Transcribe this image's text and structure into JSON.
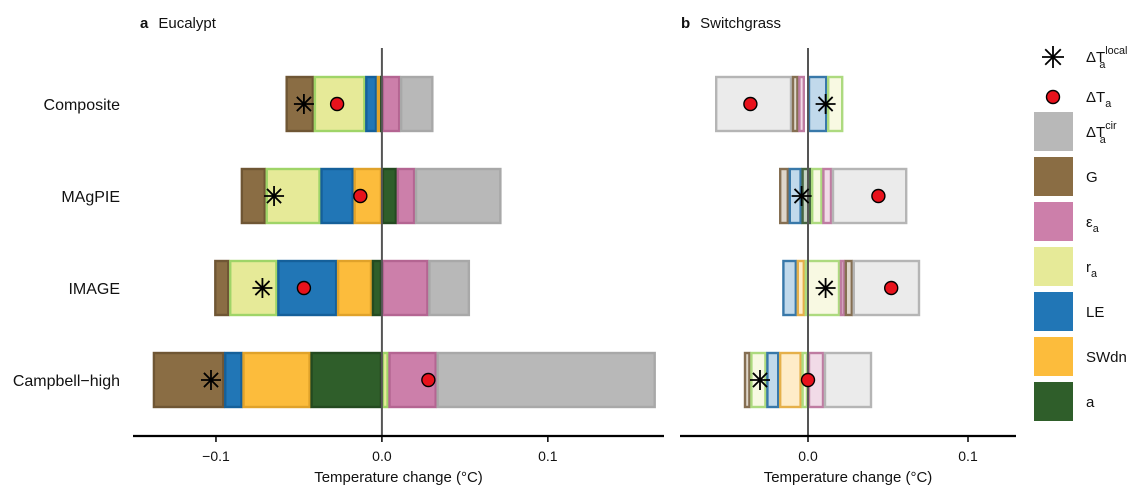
{
  "colors": {
    "G": "#8a6d44",
    "epsilon_a": "#cc7faa",
    "r_a": "#e6ea98",
    "LE": "#2176b6",
    "SWdn": "#fcbc3c",
    "a": "#2f5e2a",
    "circ": "#b8b8b8",
    "outline_r_a": "#9fd468",
    "outline_circ": "#a8a8a8",
    "local_marker": "#000000",
    "total_marker": "#e8121c"
  },
  "chart_data": [
    {
      "panel_letter": "a",
      "title": "Eucalypt",
      "type": "bar",
      "orientation": "horizontal-stacked",
      "xlabel": "Temperature change (°C)",
      "xlim": [
        -0.15,
        0.17
      ],
      "xticks": [
        -0.1,
        0.0,
        0.1
      ],
      "xtick_labels": [
        "−0.1",
        "0.0",
        "0.1"
      ],
      "faded": false,
      "categories": [
        "Composite",
        "MAgPIE",
        "IMAGE",
        "Campbell−high"
      ],
      "rows": [
        {
          "label": "Composite",
          "segments": [
            {
              "key": "G",
              "from": -0.058,
              "to": -0.041
            },
            {
              "key": "r_a",
              "from": -0.041,
              "to": -0.01
            },
            {
              "key": "LE",
              "from": -0.01,
              "to": -0.003
            },
            {
              "key": "SWdn",
              "from": -0.003,
              "to": -0.001
            },
            {
              "key": "a",
              "from": -0.001,
              "to": 0.0
            },
            {
              "key": "epsilon_a",
              "from": 0.0,
              "to": 0.011
            },
            {
              "key": "circ",
              "from": 0.011,
              "to": 0.031
            }
          ],
          "local": -0.047,
          "total": -0.027
        },
        {
          "label": "MAgPIE",
          "segments": [
            {
              "key": "G",
              "from": -0.085,
              "to": -0.07
            },
            {
              "key": "r_a",
              "from": -0.07,
              "to": -0.037
            },
            {
              "key": "LE",
              "from": -0.037,
              "to": -0.017
            },
            {
              "key": "SWdn",
              "from": -0.017,
              "to": 0.0
            },
            {
              "key": "a",
              "from": 0.0,
              "to": 0.009
            },
            {
              "key": "epsilon_a",
              "from": 0.009,
              "to": 0.02
            },
            {
              "key": "circ",
              "from": 0.02,
              "to": 0.072
            }
          ],
          "local": -0.065,
          "total": -0.013
        },
        {
          "label": "IMAGE",
          "segments": [
            {
              "key": "G",
              "from": -0.101,
              "to": -0.092
            },
            {
              "key": "r_a",
              "from": -0.092,
              "to": -0.063
            },
            {
              "key": "LE",
              "from": -0.063,
              "to": -0.027
            },
            {
              "key": "SWdn",
              "from": -0.027,
              "to": -0.006
            },
            {
              "key": "a",
              "from": -0.006,
              "to": 0.0
            },
            {
              "key": "epsilon_a",
              "from": 0.0,
              "to": 0.028
            },
            {
              "key": "circ",
              "from": 0.028,
              "to": 0.053
            }
          ],
          "local": -0.072,
          "total": -0.047
        },
        {
          "label": "Campbell−high",
          "segments": [
            {
              "key": "G",
              "from": -0.138,
              "to": -0.095
            },
            {
              "key": "LE",
              "from": -0.095,
              "to": -0.084
            },
            {
              "key": "SWdn",
              "from": -0.084,
              "to": -0.043
            },
            {
              "key": "a",
              "from": -0.043,
              "to": 0.0
            },
            {
              "key": "r_a",
              "from": 0.0,
              "to": 0.004
            },
            {
              "key": "epsilon_a",
              "from": 0.004,
              "to": 0.033
            },
            {
              "key": "circ",
              "from": 0.033,
              "to": 0.165
            }
          ],
          "local": -0.103,
          "total": 0.028
        }
      ]
    },
    {
      "panel_letter": "b",
      "title": "Switchgrass",
      "type": "bar",
      "orientation": "horizontal-stacked",
      "xlabel": "Temperature change (°C)",
      "xlim": [
        -0.08,
        0.13
      ],
      "xticks": [
        -0.1,
        0.0,
        0.1
      ],
      "xtick_labels": [
        "−0.1",
        "0.0",
        "0.1"
      ],
      "faded": true,
      "categories": [
        "Composite",
        "MAgPIE",
        "IMAGE",
        "Campbell−high"
      ],
      "rows": [
        {
          "label": "Composite",
          "segments": [
            {
              "key": "circ",
              "from": -0.058,
              "to": -0.01
            },
            {
              "key": "G",
              "from": -0.01,
              "to": -0.006
            },
            {
              "key": "epsilon_a",
              "from": -0.006,
              "to": -0.002
            },
            {
              "key": "LE",
              "from": 0.0,
              "to": 0.012
            },
            {
              "key": "r_a",
              "from": 0.012,
              "to": 0.022
            }
          ],
          "local": 0.011,
          "total": -0.036
        },
        {
          "label": "MAgPIE",
          "segments": [
            {
              "key": "G",
              "from": -0.018,
              "to": -0.012
            },
            {
              "key": "LE",
              "from": -0.012,
              "to": -0.004
            },
            {
              "key": "a",
              "from": -0.004,
              "to": 0.002
            },
            {
              "key": "r_a",
              "from": 0.002,
              "to": 0.009
            },
            {
              "key": "epsilon_a",
              "from": 0.009,
              "to": 0.015
            },
            {
              "key": "circ",
              "from": 0.015,
              "to": 0.062
            }
          ],
          "local": -0.004,
          "total": 0.044
        },
        {
          "label": "IMAGE",
          "segments": [
            {
              "key": "LE",
              "from": -0.016,
              "to": -0.007
            },
            {
              "key": "SWdn",
              "from": -0.007,
              "to": -0.002
            },
            {
              "key": "r_a",
              "from": -0.002,
              "to": 0.02
            },
            {
              "key": "epsilon_a",
              "from": 0.02,
              "to": 0.023
            },
            {
              "key": "G",
              "from": 0.023,
              "to": 0.028
            },
            {
              "key": "circ",
              "from": 0.028,
              "to": 0.07
            }
          ],
          "local": 0.011,
          "total": 0.052
        },
        {
          "label": "Campbell−high",
          "segments": [
            {
              "key": "G",
              "from": -0.04,
              "to": -0.036
            },
            {
              "key": "r_a",
              "from": -0.036,
              "to": -0.026
            },
            {
              "key": "LE",
              "from": -0.026,
              "to": -0.018
            },
            {
              "key": "SWdn",
              "from": -0.018,
              "to": -0.004
            },
            {
              "key": "r_a",
              "from": -0.004,
              "to": 0.0
            },
            {
              "key": "epsilon_a",
              "from": 0.0,
              "to": 0.01
            },
            {
              "key": "circ",
              "from": 0.01,
              "to": 0.04
            }
          ],
          "local": -0.03,
          "total": 0.0
        }
      ]
    }
  ],
  "legend": {
    "placement": "right",
    "markers": [
      {
        "key": "local",
        "symbol": "asterisk",
        "base": "ΔT",
        "sub": "a",
        "sup": "local"
      },
      {
        "key": "total",
        "symbol": "circle",
        "base": "ΔT",
        "sub": "a",
        "sup": ""
      }
    ],
    "swatches": [
      {
        "key": "circ",
        "base": "ΔT",
        "sub": "a",
        "sup": "cir"
      },
      {
        "key": "G",
        "base": "G",
        "sub": "",
        "sup": ""
      },
      {
        "key": "epsilon_a",
        "base": "ε",
        "sub": "a",
        "sup": ""
      },
      {
        "key": "r_a",
        "base": "r",
        "sub": "a",
        "sup": ""
      },
      {
        "key": "LE",
        "base": "LE",
        "sub": "",
        "sup": ""
      },
      {
        "key": "SWdn",
        "base": "SWdn",
        "sub": "",
        "sup": ""
      },
      {
        "key": "a",
        "base": "a",
        "sub": "",
        "sup": ""
      }
    ]
  }
}
